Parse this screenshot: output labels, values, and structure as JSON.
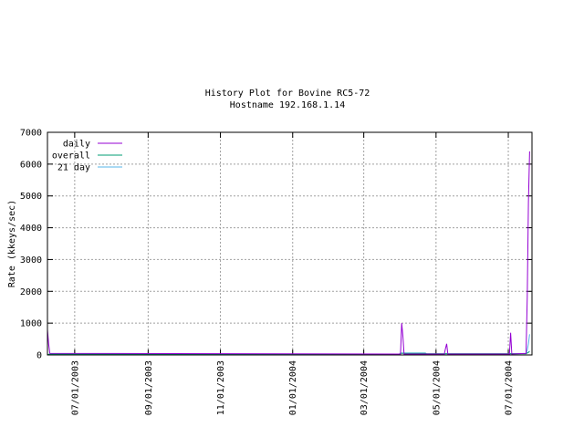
{
  "chart_data": {
    "type": "line",
    "title": "History Plot for Bovine RC5-72",
    "subtitle": "Hostname 192.168.1.14",
    "xlabel": "",
    "ylabel": "Rate (kkeys/sec)",
    "x_type": "date",
    "xlim": [
      "2003-06-08",
      "2004-07-21"
    ],
    "ylim": [
      0,
      7000
    ],
    "y_ticks": [
      0,
      1000,
      2000,
      3000,
      4000,
      5000,
      6000,
      7000
    ],
    "x_ticks": [
      {
        "date": "2003-07-01",
        "label": "07/01/2003"
      },
      {
        "date": "2003-09-01",
        "label": "09/01/2003"
      },
      {
        "date": "2003-11-01",
        "label": "11/01/2003"
      },
      {
        "date": "2004-01-01",
        "label": "01/01/2004"
      },
      {
        "date": "2004-03-01",
        "label": "03/01/2004"
      },
      {
        "date": "2004-05-01",
        "label": "05/01/2004"
      },
      {
        "date": "2004-07-01",
        "label": "07/01/2004"
      }
    ],
    "grid": true,
    "legend_position": "top-left",
    "series": [
      {
        "name": "daily",
        "color": "#9400d3",
        "points": [
          [
            "2003-06-08",
            800
          ],
          [
            "2003-06-09",
            350
          ],
          [
            "2003-06-10",
            50
          ],
          [
            "2004-04-01",
            30
          ],
          [
            "2004-04-02",
            1000
          ],
          [
            "2004-04-03",
            600
          ],
          [
            "2004-04-04",
            30
          ],
          [
            "2004-05-08",
            30
          ],
          [
            "2004-05-09",
            200
          ],
          [
            "2004-05-10",
            350
          ],
          [
            "2004-05-11",
            30
          ],
          [
            "2004-07-02",
            30
          ],
          [
            "2004-07-03",
            700
          ],
          [
            "2004-07-04",
            30
          ],
          [
            "2004-07-16",
            50
          ],
          [
            "2004-07-17",
            1800
          ],
          [
            "2004-07-18",
            4800
          ],
          [
            "2004-07-19",
            6400
          ]
        ]
      },
      {
        "name": "overall",
        "color": "#009e73",
        "points": [
          [
            "2003-06-08",
            10
          ],
          [
            "2003-06-10",
            30
          ],
          [
            "2004-03-31",
            30
          ],
          [
            "2004-04-01",
            50
          ],
          [
            "2004-04-22",
            50
          ],
          [
            "2004-04-23",
            40
          ],
          [
            "2004-07-16",
            40
          ],
          [
            "2004-07-17",
            60
          ],
          [
            "2004-07-18",
            80
          ],
          [
            "2004-07-19",
            120
          ]
        ]
      },
      {
        "name": "21 day",
        "color": "#56b4e9",
        "points": [
          [
            "2003-06-08",
            0
          ],
          [
            "2003-06-10",
            10
          ],
          [
            "2004-03-31",
            10
          ],
          [
            "2004-04-01",
            60
          ],
          [
            "2004-04-22",
            60
          ],
          [
            "2004-04-23",
            10
          ],
          [
            "2004-07-02",
            10
          ],
          [
            "2004-07-03",
            40
          ],
          [
            "2004-07-16",
            40
          ],
          [
            "2004-07-17",
            150
          ],
          [
            "2004-07-18",
            350
          ],
          [
            "2004-07-19",
            650
          ]
        ]
      }
    ]
  }
}
